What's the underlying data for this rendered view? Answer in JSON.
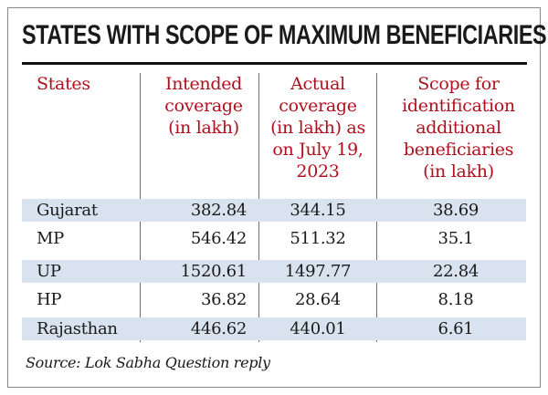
{
  "title": "STATES WITH SCOPE OF MAXIMUM BENEFICIARIES",
  "colors": {
    "header_text": "#b0101e",
    "row_shade": "#d8e3ef",
    "rule": "#111111"
  },
  "chart_data": {
    "type": "table",
    "title": "STATES WITH SCOPE OF MAXIMUM BENEFICIARIES",
    "columns": [
      {
        "lines": [
          "States"
        ]
      },
      {
        "lines": [
          "Intended",
          "coverage",
          "(in lakh)"
        ]
      },
      {
        "lines": [
          "Actual",
          "coverage",
          "(in lakh) as",
          "on July 19,",
          "2023"
        ]
      },
      {
        "lines": [
          "Scope for",
          "identification",
          "additional",
          "beneficiaries",
          "(in lakh)"
        ]
      }
    ],
    "rows": [
      {
        "state": "Gujarat",
        "intended": "382.84",
        "actual": "344.15",
        "scope": "38.69"
      },
      {
        "state": "MP",
        "intended": "546.42",
        "actual": "511.32",
        "scope": "35.1"
      },
      {
        "state": "UP",
        "intended": "1520.61",
        "actual": "1497.77",
        "scope": "22.84"
      },
      {
        "state": "HP",
        "intended": "36.82",
        "actual": "28.64",
        "scope": "8.18"
      },
      {
        "state": "Rajasthan",
        "intended": "446.62",
        "actual": "440.01",
        "scope": "6.61"
      }
    ]
  },
  "source": "Source: Lok Sabha Question reply"
}
